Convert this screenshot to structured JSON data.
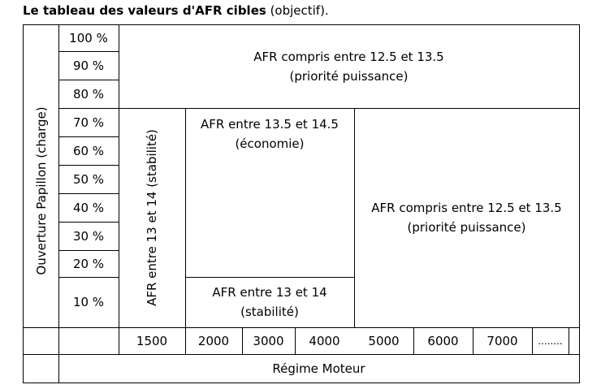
{
  "title": {
    "bold": "Le tableau des valeurs d'AFR cibles",
    "normal": " (objectif)."
  },
  "y_axis_label": "Ouverture Papillon (charge)",
  "load_rows": [
    "100 %",
    "90 %",
    "80 %",
    "70 %",
    "60 %",
    "50 %",
    "40 %",
    "30 %",
    "20 %",
    "10 %"
  ],
  "rpm_values": [
    "1500",
    "2000",
    "3000",
    "4000",
    "5000",
    "6000",
    "7000",
    "........"
  ],
  "x_axis_label": "Régime Moteur",
  "zones": {
    "top_power": "AFR compris entre 12.5 et 13.5\n(priorité puissance)",
    "left_stability": "AFR entre 13 et 14 (stabilité)",
    "economy": "AFR entre 13.5 et 14.5\n(économie)",
    "low_stability": "AFR entre 13 et 14\n(stabilité)",
    "right_power": "AFR compris entre 12.5 et 13.5\n(priorité puissance)"
  }
}
